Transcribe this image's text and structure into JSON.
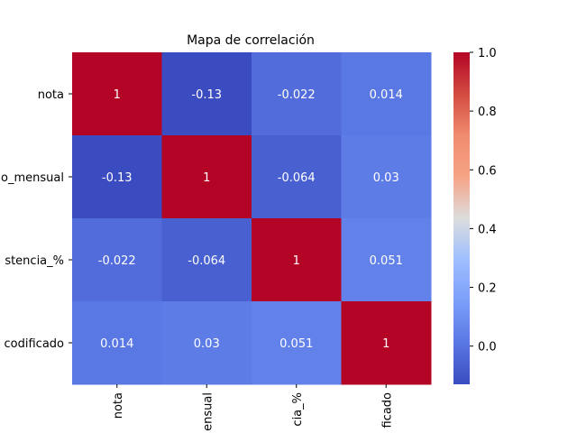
{
  "chart_data": {
    "type": "heatmap",
    "title": "Mapa de correlación",
    "row_labels": [
      "nota",
      "o_mensual",
      "stencia_%",
      "codificado"
    ],
    "col_labels": [
      "nota",
      "ensual",
      "cia_%",
      "ficado"
    ],
    "values": [
      [
        1,
        -0.13,
        -0.022,
        0.014
      ],
      [
        -0.13,
        1,
        -0.064,
        0.03
      ],
      [
        -0.022,
        -0.064,
        1,
        0.051
      ],
      [
        0.014,
        0.03,
        0.051,
        1
      ]
    ],
    "cell_labels": [
      [
        "1",
        "-0.13",
        "-0.022",
        "0.014"
      ],
      [
        "-0.13",
        "1",
        "-0.064",
        "0.03"
      ],
      [
        "-0.022",
        "-0.064",
        "1",
        "0.051"
      ],
      [
        "0.014",
        "0.03",
        "0.051",
        "1"
      ]
    ],
    "colormap": "coolwarm",
    "vmin": -0.13,
    "vmax": 1.0,
    "colorbar_ticks": [
      "0.0",
      "0.2",
      "0.4",
      "0.6",
      "0.8",
      "1.0"
    ],
    "colorbar_tick_values": [
      0.0,
      0.2,
      0.4,
      0.6,
      0.8,
      1.0
    ],
    "grid": false,
    "colors": {
      "low": "#3b4cc0",
      "mid": "#dddddd",
      "high": "#b40426",
      "text_on_cell": "#ffffff",
      "axis_text": "#000000"
    }
  }
}
